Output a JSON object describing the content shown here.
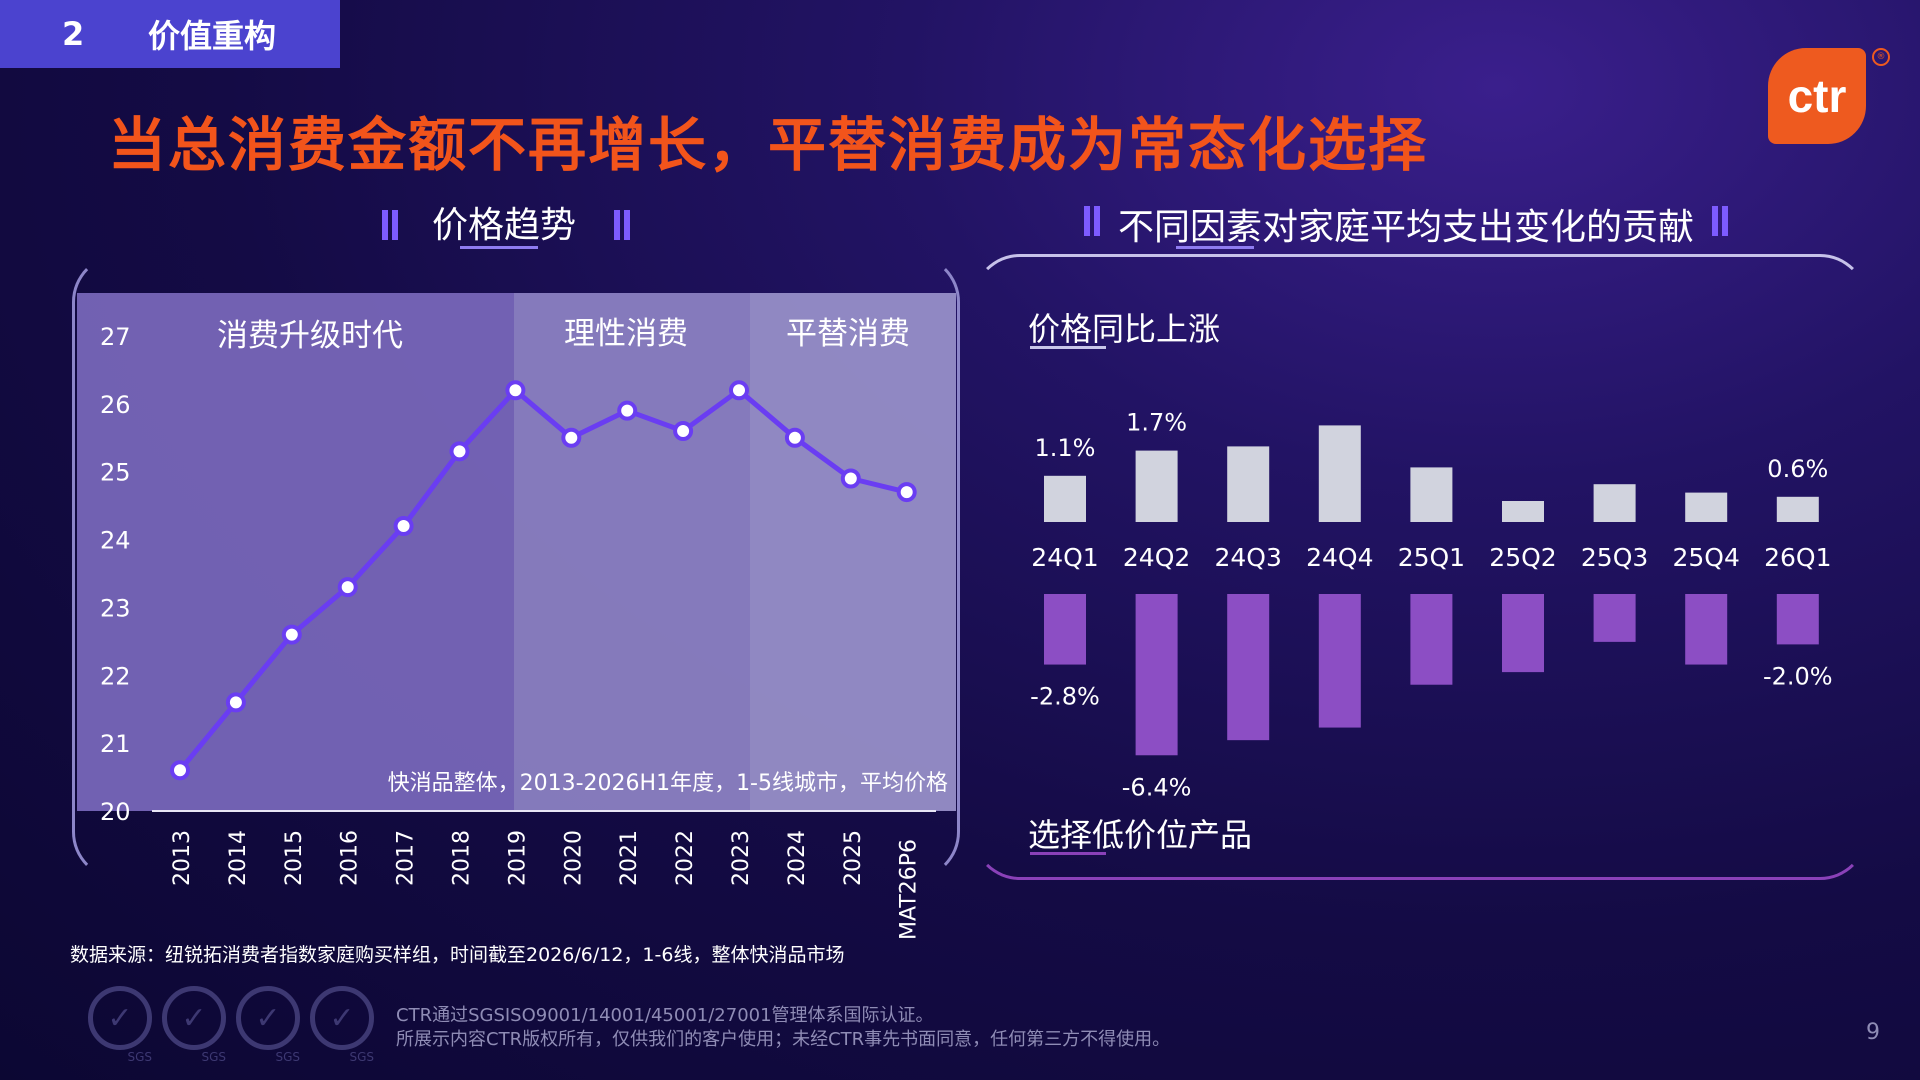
{
  "header": {
    "section_number": "2",
    "section_title": "价值重构",
    "main_title": "当总消费金额不再增长，平替消费成为常态化选择",
    "logo_text": "ctr",
    "logo_reg": "®"
  },
  "left_panel": {
    "title": "价格趋势",
    "era_labels": [
      "消费升级时代",
      "理性消费",
      "平替消费"
    ],
    "note": "快消品整体，2013-2026H1年度，1-5线城市，平均价格"
  },
  "right_panel": {
    "title": "不同因素对家庭平均支出变化的贡献",
    "top_label": "价格同比上涨",
    "bottom_label": "选择低价位产品"
  },
  "chart_data": [
    {
      "type": "line",
      "title": "价格趋势",
      "x": [
        "2013",
        "2014",
        "2015",
        "2016",
        "2017",
        "2018",
        "2019",
        "2020",
        "2021",
        "2022",
        "2023",
        "2024",
        "2025",
        "MAT26P6"
      ],
      "series": [
        {
          "values": [
            20.6,
            21.6,
            22.6,
            23.3,
            24.2,
            25.3,
            26.2,
            25.5,
            25.9,
            25.6,
            26.2,
            25.5,
            24.9,
            24.7
          ]
        }
      ],
      "ylim": [
        20,
        27
      ],
      "yticks": [
        "20",
        "21",
        "22",
        "23",
        "24",
        "25",
        "26",
        "27"
      ],
      "regions": [
        {
          "label": "消费升级时代",
          "from": "2013",
          "to": "2019"
        },
        {
          "label": "理性消费",
          "from": "2019",
          "to": "2023"
        },
        {
          "label": "平替消费",
          "from": "2023",
          "to": "MAT26P6"
        }
      ],
      "colors": {
        "line": "#6a3df2",
        "marker_fill": "#ffffff"
      }
    },
    {
      "type": "bar",
      "categories": [
        "24Q1",
        "24Q2",
        "24Q3",
        "24Q4",
        "25Q1",
        "25Q2",
        "25Q3",
        "25Q4",
        "26Q1"
      ],
      "series": [
        {
          "name": "价格同比上涨",
          "values": [
            1.1,
            1.7,
            1.8,
            2.3,
            1.3,
            0.5,
            0.9,
            0.7,
            0.6
          ],
          "labels": [
            "1.1%",
            "1.7%",
            "",
            "",
            "",
            "",
            "",
            "",
            "0.6%"
          ],
          "color": "#d1d3de"
        },
        {
          "name": "选择低价位产品",
          "values": [
            -2.8,
            -6.4,
            -5.8,
            -5.3,
            -3.6,
            -3.1,
            -1.9,
            -2.8,
            -2.0
          ],
          "labels": [
            "-2.8%",
            "-6.4%",
            "",
            "",
            "",
            "",
            "",
            "",
            "-2.0%"
          ],
          "color": "#8c4ec4"
        }
      ]
    }
  ],
  "footer": {
    "source": "数据来源：纽锐拓消费者指数家庭购买样组，时间截至2026/6/12，1-6线，整体快消品市场",
    "cert_line1": "CTR通过SGSISO9001/14001/45001/27001管理体系国际认证。",
    "cert_line2": "所展示内容CTR版权所有，仅供我们的客户使用；未经CTR事先书面同意，任何第三方不得使用。",
    "cert_badges": [
      "SGS",
      "SGS",
      "SGS",
      "SGS"
    ],
    "cert_mark": "✓",
    "page_number": "9"
  }
}
